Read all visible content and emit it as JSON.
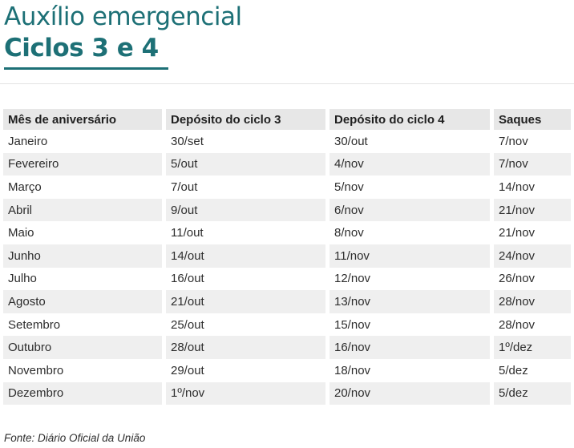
{
  "header": {
    "title_line1": "Auxílio emergencial",
    "title_line2": "Ciclos 3 e 4"
  },
  "chart_data": {
    "type": "table",
    "title": "Auxílio emergencial — Ciclos 3 e 4",
    "columns": [
      "Mês de aniversário",
      "Depósito do ciclo 3",
      "Depósito do ciclo 4",
      "Saques"
    ],
    "rows": [
      [
        "Janeiro",
        "30/set",
        "30/out",
        "7/nov"
      ],
      [
        "Fevereiro",
        "5/out",
        "4/nov",
        "7/nov"
      ],
      [
        "Março",
        "7/out",
        "5/nov",
        "14/nov"
      ],
      [
        "Abril",
        "9/out",
        "6/nov",
        "21/nov"
      ],
      [
        "Maio",
        "11/out",
        "8/nov",
        "21/nov"
      ],
      [
        "Junho",
        "14/out",
        "11/nov",
        "24/nov"
      ],
      [
        "Julho",
        "16/out",
        "12/nov",
        "26/nov"
      ],
      [
        "Agosto",
        "21/out",
        "13/nov",
        "28/nov"
      ],
      [
        "Setembro",
        "25/out",
        "15/nov",
        "28/nov"
      ],
      [
        "Outubro",
        "28/out",
        "16/nov",
        "1º/dez"
      ],
      [
        "Novembro",
        "29/out",
        "18/nov",
        "5/dez"
      ],
      [
        "Dezembro",
        "1º/nov",
        "20/nov",
        "5/dez"
      ]
    ]
  },
  "footer": {
    "source": "Fonte: Diário Oficial da União"
  },
  "colors": {
    "accent_teal": "#1d7076",
    "header_row_bg": "#e7e7e7",
    "alt_row_bg": "#efefef",
    "divider": "#e4e4e4",
    "text": "#2d2d2d"
  }
}
